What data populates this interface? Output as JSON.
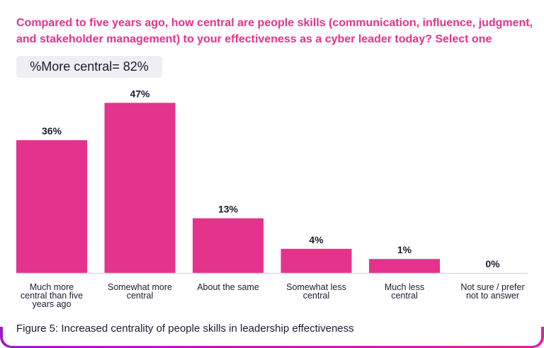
{
  "chart_data": {
    "type": "bar",
    "title": "Compared to five years ago, how central are people skills (communication, influence, judgment, and stakeholder management) to your effectiveness as a cyber leader today? Select one",
    "summary_badge": "%More central= 82%",
    "categories": [
      [
        "Much more",
        "central than five",
        "years ago"
      ],
      [
        "Somewhat more",
        "central"
      ],
      [
        "About the same"
      ],
      [
        "Somewhat less",
        "central"
      ],
      [
        "Much less",
        "central"
      ],
      [
        "Not sure / prefer",
        "not to answer"
      ]
    ],
    "values": [
      36,
      47,
      13,
      4,
      1,
      0
    ],
    "value_labels": [
      "36%",
      "47%",
      "13%",
      "4%",
      "1%",
      "0%"
    ],
    "xlabel": "",
    "ylabel": "",
    "ylim": [
      0,
      50
    ],
    "grid": false,
    "legend": "none",
    "caption": "Figure 5: Increased centrality of people skills in leadership effectiveness"
  },
  "colors": {
    "bar": "#e3338c",
    "title": "#e3338c",
    "axis": "#dcdcdc",
    "text": "#1b1b33"
  }
}
